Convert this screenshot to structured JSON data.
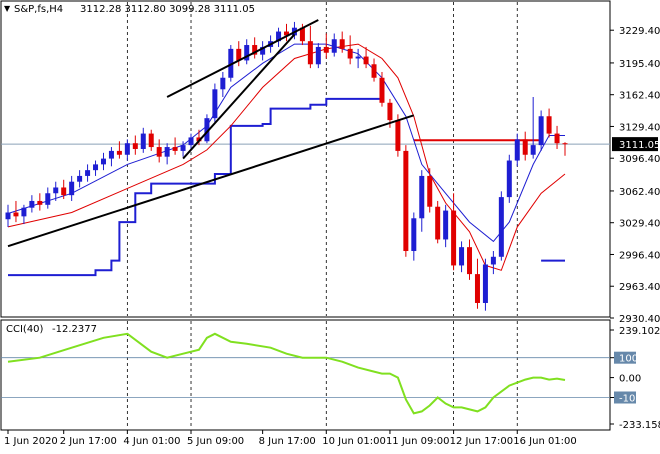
{
  "header": {
    "symbol": "S&P,fs,H4",
    "ohlc": "3112.28 3112.80 3099.28 3111.05"
  },
  "cci_header": {
    "label": "CCI(40)",
    "value": "-12.2377"
  },
  "colors": {
    "bull": "#1e1ed2",
    "bear": "#e00000",
    "ma_fast": "#1e1ed2",
    "ma_slow": "#e00000",
    "trend": "#000000",
    "cci": "#80e020",
    "level_blue": "#1e1ed2",
    "level_red": "#e00000",
    "current_price_line": "#8aa0b8",
    "cci_level_line": "#6688aa",
    "grid": "#000000"
  },
  "chart_data": [
    {
      "type": "candlestick",
      "title": "",
      "ylim": [
        2930.4,
        3240
      ],
      "y_ticks": [
        "3229.40",
        "3195.40",
        "3162.40",
        "3129.40",
        "3096.40",
        "3062.40",
        "3029.40",
        "2996.40",
        "2963.40",
        "2930.40"
      ],
      "current_price": "3111.05",
      "x_labels": [
        "1 Jun 2020",
        "2 Jun 17:00",
        "4 Jun 01:00",
        "5 Jun 09:00",
        "8 Jun 17:00",
        "10 Jun 01:00",
        "11 Jun 09:00",
        "12 Jun 17:00",
        "16 Jun 01:00"
      ],
      "vertical_grid_dates": [
        "4 Jun 01:00",
        "5 Jun 09:00",
        "10 Jun 01:00",
        "12 Jun 17:00",
        "16 Jun 01:00"
      ],
      "candles": [
        [
          3033,
          3048,
          3025,
          3040
        ],
        [
          3040,
          3052,
          3030,
          3036
        ],
        [
          3036,
          3048,
          3028,
          3045
        ],
        [
          3045,
          3058,
          3040,
          3052
        ],
        [
          3052,
          3060,
          3042,
          3048
        ],
        [
          3048,
          3066,
          3044,
          3060
        ],
        [
          3060,
          3072,
          3052,
          3066
        ],
        [
          3066,
          3074,
          3054,
          3058
        ],
        [
          3058,
          3078,
          3052,
          3072
        ],
        [
          3072,
          3084,
          3066,
          3078
        ],
        [
          3078,
          3090,
          3072,
          3084
        ],
        [
          3084,
          3094,
          3078,
          3090
        ],
        [
          3090,
          3102,
          3084,
          3096
        ],
        [
          3096,
          3108,
          3088,
          3104
        ],
        [
          3104,
          3114,
          3096,
          3100
        ],
        [
          3100,
          3116,
          3094,
          3112
        ],
        [
          3112,
          3120,
          3100,
          3106
        ],
        [
          3106,
          3128,
          3102,
          3122
        ],
        [
          3122,
          3126,
          3104,
          3108
        ],
        [
          3108,
          3116,
          3092,
          3098
        ],
        [
          3098,
          3112,
          3090,
          3108
        ],
        [
          3108,
          3118,
          3100,
          3104
        ],
        [
          3104,
          3114,
          3098,
          3110
        ],
        [
          3110,
          3122,
          3104,
          3118
        ],
        [
          3118,
          3126,
          3110,
          3114
        ],
        [
          3114,
          3142,
          3112,
          3138
        ],
        [
          3138,
          3174,
          3134,
          3168
        ],
        [
          3168,
          3186,
          3160,
          3180
        ],
        [
          3180,
          3214,
          3176,
          3210
        ],
        [
          3210,
          3218,
          3192,
          3198
        ],
        [
          3198,
          3220,
          3194,
          3214
        ],
        [
          3214,
          3222,
          3200,
          3204
        ],
        [
          3204,
          3218,
          3198,
          3212
        ],
        [
          3212,
          3224,
          3206,
          3218
        ],
        [
          3218,
          3232,
          3212,
          3228
        ],
        [
          3228,
          3236,
          3218,
          3224
        ],
        [
          3224,
          3238,
          3220,
          3232
        ],
        [
          3232,
          3236,
          3214,
          3218
        ],
        [
          3218,
          3234,
          3190,
          3194
        ],
        [
          3194,
          3216,
          3190,
          3212
        ],
        [
          3212,
          3226,
          3200,
          3206
        ],
        [
          3206,
          3226,
          3202,
          3220
        ],
        [
          3220,
          3228,
          3206,
          3210
        ],
        [
          3210,
          3224,
          3194,
          3200
        ],
        [
          3200,
          3210,
          3190,
          3202
        ],
        [
          3202,
          3212,
          3190,
          3194
        ],
        [
          3194,
          3200,
          3176,
          3180
        ],
        [
          3180,
          3186,
          3150,
          3154
        ],
        [
          3154,
          3158,
          3128,
          3136
        ],
        [
          3136,
          3142,
          3098,
          3104
        ],
        [
          3104,
          3110,
          2994,
          3000
        ],
        [
          3000,
          3040,
          2990,
          3034
        ],
        [
          3034,
          3084,
          3020,
          3078
        ],
        [
          3078,
          3086,
          3040,
          3046
        ],
        [
          3046,
          3052,
          3008,
          3012
        ],
        [
          3012,
          3048,
          3004,
          3042
        ],
        [
          3042,
          3060,
          2980,
          2985
        ],
        [
          2985,
          3010,
          2978,
          3004
        ],
        [
          3004,
          3012,
          2970,
          2976
        ],
        [
          2976,
          2992,
          2940,
          2946
        ],
        [
          2946,
          2992,
          2938,
          2986
        ],
        [
          2986,
          3000,
          2976,
          2994
        ],
        [
          2994,
          3062,
          2990,
          3056
        ],
        [
          3056,
          3100,
          3050,
          3094
        ],
        [
          3094,
          3122,
          3088,
          3116
        ],
        [
          3116,
          3124,
          3094,
          3100
        ],
        [
          3100,
          3160,
          3096,
          3110
        ],
        [
          3110,
          3146,
          3104,
          3140
        ],
        [
          3140,
          3148,
          3118,
          3122
        ],
        [
          3122,
          3130,
          3106,
          3112
        ],
        [
          3112,
          3113,
          3099,
          3111
        ]
      ],
      "ma_fast": [
        [
          0,
          3039
        ],
        [
          8,
          3060
        ],
        [
          15,
          3090
        ],
        [
          22,
          3110
        ],
        [
          25,
          3130
        ],
        [
          28,
          3170
        ],
        [
          32,
          3195
        ],
        [
          36,
          3215
        ],
        [
          40,
          3215
        ],
        [
          44,
          3205
        ],
        [
          47,
          3180
        ],
        [
          50,
          3140
        ],
        [
          52,
          3090
        ],
        [
          55,
          3060
        ],
        [
          58,
          3030
        ],
        [
          61,
          3010
        ],
        [
          63,
          3030
        ],
        [
          66,
          3090
        ],
        [
          68,
          3120
        ],
        [
          70,
          3120
        ]
      ],
      "ma_slow": [
        [
          0,
          3025
        ],
        [
          8,
          3040
        ],
        [
          15,
          3065
        ],
        [
          22,
          3090
        ],
        [
          25,
          3105
        ],
        [
          28,
          3130
        ],
        [
          32,
          3170
        ],
        [
          36,
          3200
        ],
        [
          40,
          3210
        ],
        [
          44,
          3215
        ],
        [
          47,
          3200
        ],
        [
          49,
          3180
        ],
        [
          51,
          3140
        ],
        [
          53,
          3080
        ],
        [
          55,
          3050
        ],
        [
          58,
          3020
        ],
        [
          60,
          2985
        ],
        [
          62,
          2980
        ],
        [
          64,
          3025
        ],
        [
          67,
          3060
        ],
        [
          70,
          3080
        ]
      ],
      "blue_step_line": [
        [
          0,
          2975
        ],
        [
          10,
          2975
        ],
        [
          11,
          2980
        ],
        [
          13,
          2990
        ],
        [
          14,
          3030
        ],
        [
          16,
          3060
        ],
        [
          18,
          3070
        ],
        [
          23,
          3070
        ],
        [
          26,
          3080
        ],
        [
          28,
          3130
        ],
        [
          32,
          3132
        ],
        [
          33,
          3148
        ],
        [
          38,
          3152
        ],
        [
          40,
          3158
        ],
        [
          47,
          3158
        ]
      ],
      "blue_short_segment": [
        [
          67,
          2990
        ],
        [
          70,
          2990
        ]
      ],
      "red_level_line": [
        [
          51,
          3115
        ],
        [
          67,
          3115
        ]
      ],
      "trend_lines": [
        [
          [
            0,
            3005
          ],
          [
            51,
            3141
          ]
        ],
        [
          [
            20,
            3160
          ],
          [
            39,
            3240
          ]
        ],
        [
          [
            22,
            3096
          ],
          [
            36,
            3225
          ]
        ]
      ]
    },
    {
      "type": "line",
      "title": "",
      "ylim": [
        -233.1583,
        239.1027
      ],
      "y_ticks": [
        "239.1027",
        "100",
        "0.00",
        "-100",
        "-233.1583"
      ],
      "levels": [
        100,
        -100
      ],
      "series": [
        {
          "values": [
            [
              0,
              80
            ],
            [
              4,
              100
            ],
            [
              8,
              150
            ],
            [
              12,
              200
            ],
            [
              15,
              220
            ],
            [
              18,
              130
            ],
            [
              20,
              100
            ],
            [
              22,
              120
            ],
            [
              24,
              140
            ],
            [
              25,
              200
            ],
            [
              26,
              220
            ],
            [
              28,
              180
            ],
            [
              30,
              170
            ],
            [
              33,
              150
            ],
            [
              35,
              120
            ],
            [
              37,
              100
            ],
            [
              40,
              100
            ],
            [
              42,
              80
            ],
            [
              44,
              50
            ],
            [
              46,
              30
            ],
            [
              47,
              20
            ],
            [
              48,
              20
            ],
            [
              49,
              0
            ],
            [
              50,
              -110
            ],
            [
              51,
              -180
            ],
            [
              52,
              -170
            ],
            [
              53,
              -140
            ],
            [
              54,
              -100
            ],
            [
              55,
              -130
            ],
            [
              56,
              -150
            ],
            [
              57,
              -150
            ],
            [
              59,
              -170
            ],
            [
              60,
              -150
            ],
            [
              61,
              -100
            ],
            [
              63,
              -40
            ],
            [
              65,
              -10
            ],
            [
              66,
              0
            ],
            [
              67,
              0
            ],
            [
              68,
              -10
            ],
            [
              69,
              -5
            ],
            [
              70,
              -12
            ]
          ]
        }
      ]
    }
  ]
}
